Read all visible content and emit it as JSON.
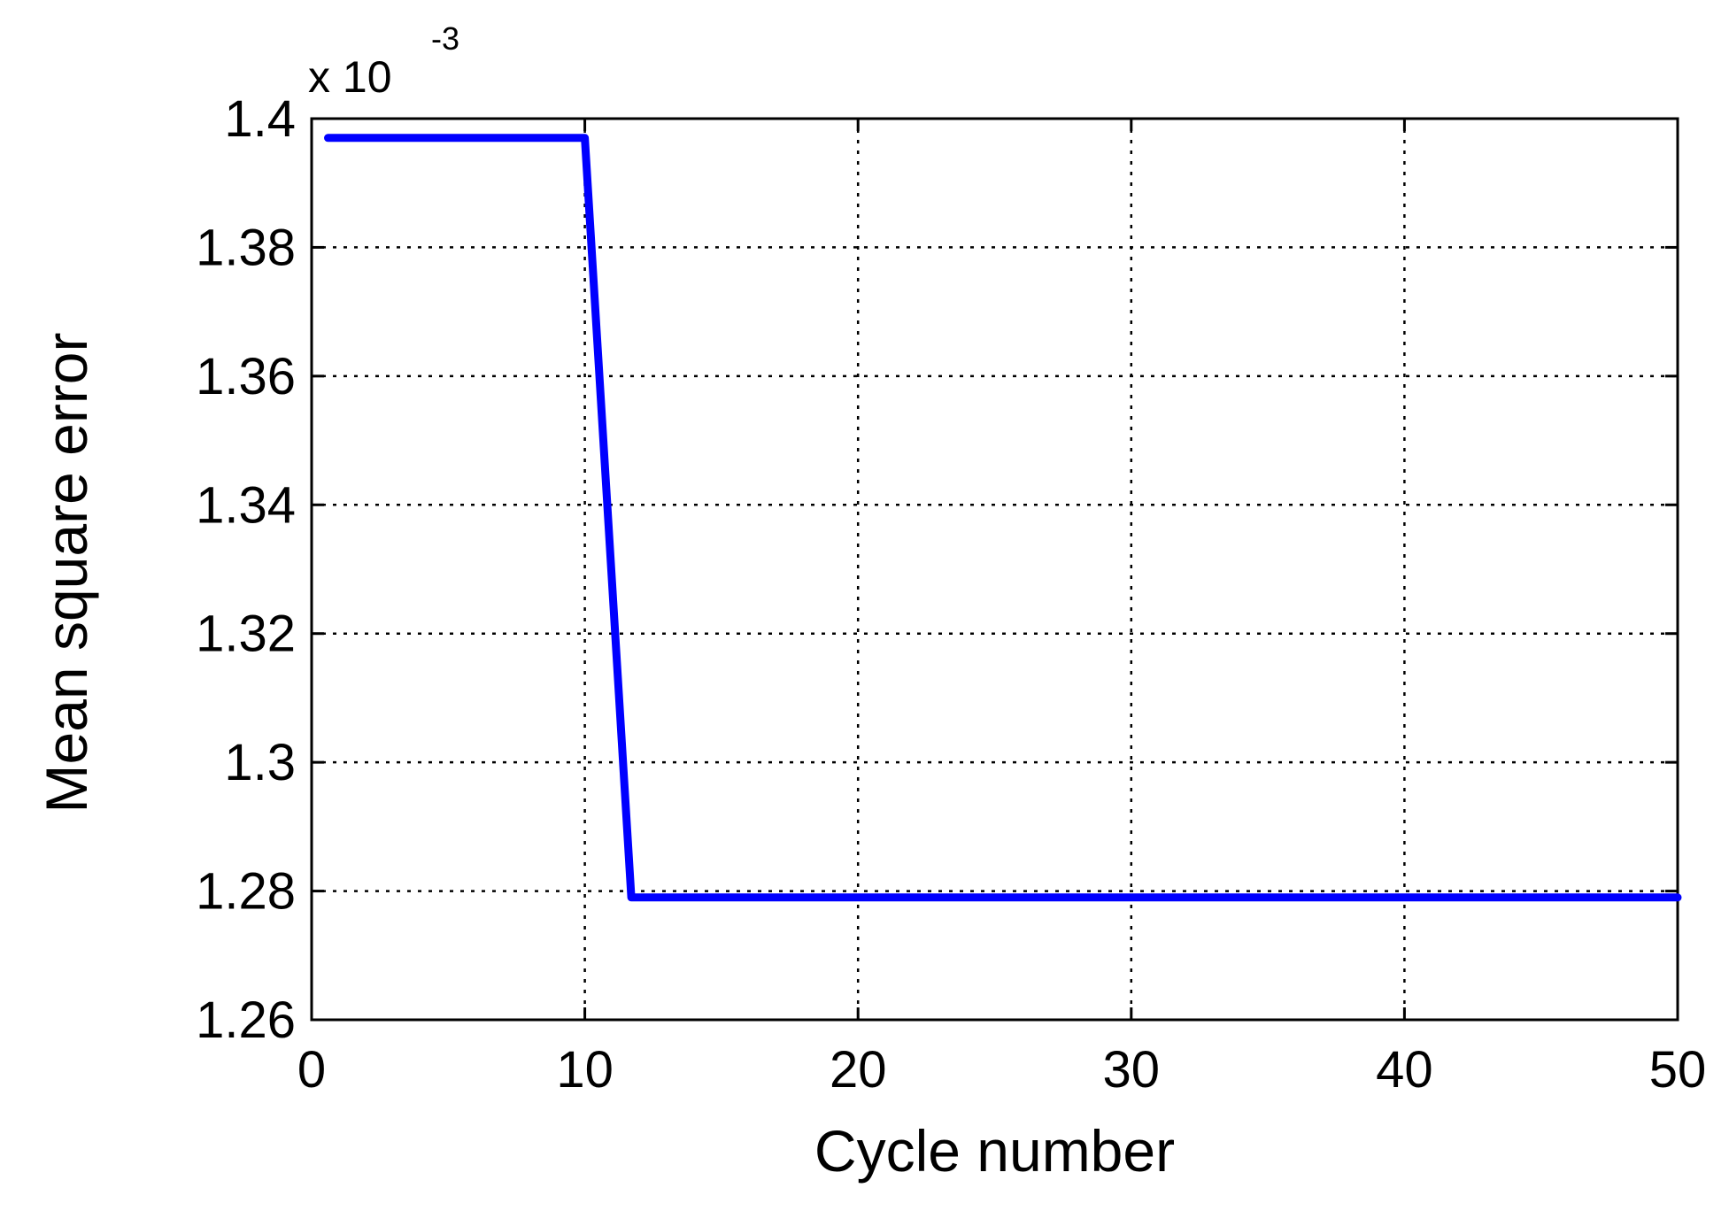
{
  "chart_data": {
    "type": "line",
    "title": "",
    "xlabel": "Cycle number",
    "ylabel": "Mean square error",
    "y_multiplier_label": "x 10",
    "y_multiplier_exponent": "-3",
    "xlim": [
      0,
      50
    ],
    "ylim": [
      1.26,
      1.4
    ],
    "x_ticks": [
      0,
      10,
      20,
      30,
      40,
      50
    ],
    "x_tick_labels": [
      "0",
      "10",
      "20",
      "30",
      "40",
      "50"
    ],
    "y_ticks": [
      1.26,
      1.28,
      1.3,
      1.32,
      1.34,
      1.36,
      1.38,
      1.4
    ],
    "y_tick_labels": [
      "1.26",
      "1.28",
      "1.3",
      "1.32",
      "1.34",
      "1.36",
      "1.38",
      "1.4"
    ],
    "grid": true,
    "series": [
      {
        "color": "#0000ff",
        "x": [
          0.6,
          10,
          11.7,
          50
        ],
        "y": [
          1.397,
          1.397,
          1.279,
          1.279
        ]
      }
    ]
  }
}
